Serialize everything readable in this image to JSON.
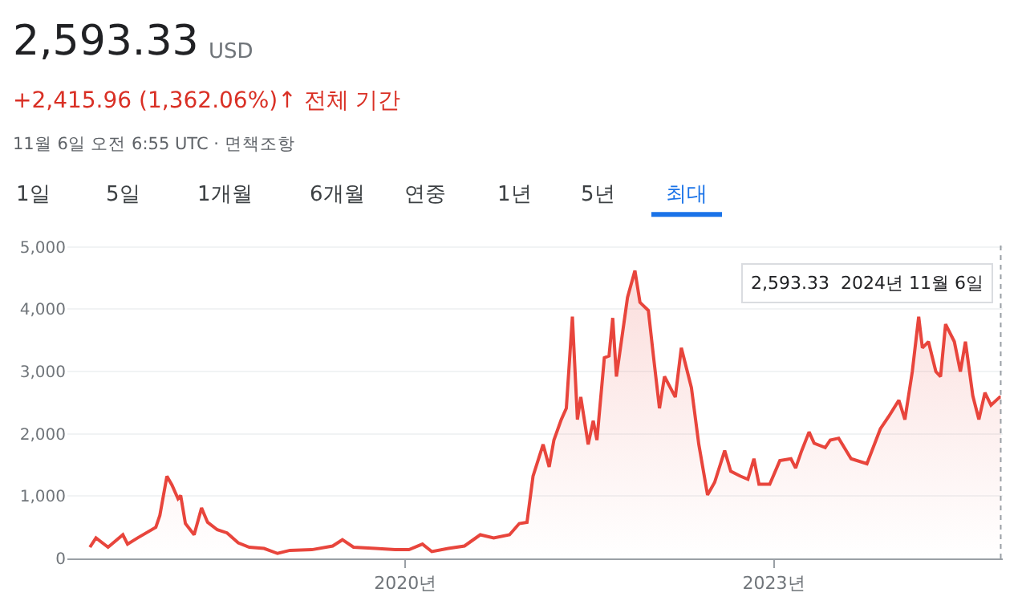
{
  "chart_data": {
    "type": "area",
    "annotations": [
      "2,593.33",
      "USD",
      "+2,415.96 (1,362.06%)↑ 전체 기간",
      "11월 6일 오전 6:55 UTC · 면책조항",
      "1일",
      "5일",
      "1개월",
      "6개월",
      "연중",
      "1년",
      "5년",
      "최대",
      "2,593.33  2024년 11월 6일"
    ],
    "x": [
      "2017-06-07",
      "2017-06-25",
      "2017-07-31",
      "2017-09-13",
      "2017-09-27",
      "2017-10-27",
      "2017-12-20",
      "2018-01-01",
      "2018-01-22",
      "2018-02-06",
      "2018-02-24",
      "2018-03-04",
      "2018-03-18",
      "2018-04-13",
      "2018-05-05",
      "2018-05-23",
      "2018-06-21",
      "2018-07-20",
      "2018-08-22",
      "2018-09-24",
      "2018-11-07",
      "2018-12-17",
      "2019-01-23",
      "2019-03-29",
      "2019-05-30",
      "2019-06-28",
      "2019-07-31",
      "2019-10-04",
      "2019-12-02",
      "2020-01-12",
      "2020-02-21",
      "2020-03-20",
      "2020-05-08",
      "2020-06-25",
      "2020-08-11",
      "2020-09-20",
      "2020-11-06",
      "2020-12-05",
      "2020-12-28",
      "2021-01-15",
      "2021-02-14",
      "2021-03-04",
      "2021-03-18",
      "2021-04-09",
      "2021-04-24",
      "2021-05-12",
      "2021-05-27",
      "2021-06-06",
      "2021-06-28",
      "2021-07-13",
      "2021-07-24",
      "2021-08-15",
      "2021-08-29",
      "2021-09-09",
      "2021-09-20",
      "2021-10-23",
      "2021-11-14",
      "2021-11-29",
      "2021-12-24",
      "2022-01-08",
      "2022-01-26",
      "2022-02-10",
      "2022-03-14",
      "2022-04-01",
      "2022-05-01",
      "2022-05-23",
      "2022-06-18",
      "2022-07-09",
      "2022-08-08",
      "2022-08-26",
      "2022-09-24",
      "2022-10-16",
      "2022-11-03",
      "2022-11-18",
      "2022-12-20",
      "2023-01-19",
      "2023-02-21",
      "2023-03-07",
      "2023-03-25",
      "2023-04-16",
      "2023-05-01",
      "2023-06-03",
      "2023-06-18",
      "2023-07-13",
      "2023-08-19",
      "2023-10-05",
      "2023-11-14",
      "2023-12-09",
      "2024-01-08",
      "2024-01-26",
      "2024-02-17",
      "2024-03-07",
      "2024-03-18",
      "2024-04-05",
      "2024-04-27",
      "2024-05-11",
      "2024-05-26",
      "2024-06-21",
      "2024-07-09",
      "2024-07-24",
      "2024-08-15",
      "2024-09-02",
      "2024-09-20",
      "2024-10-08",
      "2024-11-03",
      "2024-11-06"
    ],
    "series": [
      {
        "color": "#e8453c",
        "values": [
          180,
          330,
          180,
          380,
          230,
          330,
          500,
          690,
          1320,
          1180,
          960,
          1010,
          560,
          380,
          810,
          580,
          460,
          410,
          250,
          180,
          160,
          80,
          130,
          140,
          200,
          300,
          180,
          160,
          140,
          140,
          230,
          110,
          160,
          200,
          380,
          330,
          380,
          560,
          580,
          1320,
          1830,
          1470,
          1900,
          2230,
          2410,
          3880,
          2230,
          2590,
          1830,
          2210,
          1900,
          3220,
          3250,
          3860,
          2920,
          4190,
          4620,
          4110,
          3980,
          3250,
          2410,
          2920,
          2590,
          3380,
          2740,
          1830,
          1020,
          1220,
          1730,
          1400,
          1320,
          1270,
          1600,
          1190,
          1190,
          1570,
          1600,
          1450,
          1730,
          2030,
          1850,
          1780,
          1900,
          1930,
          1600,
          1520,
          2080,
          2280,
          2540,
          2230,
          3000,
          3880,
          3380,
          3480,
          3000,
          2920,
          3760,
          3480,
          3000,
          3480,
          2610,
          2230,
          2660,
          2460,
          2590,
          2590
        ]
      }
    ],
    "xlim": [
      "2017-04-01",
      "2024-11-12"
    ],
    "xticks": [
      {
        "value": "2020-01-01",
        "label": "2020년"
      },
      {
        "value": "2023-01-01",
        "label": "2023년"
      }
    ],
    "ylim": [
      0,
      5100
    ],
    "yticks": [
      {
        "value": 0,
        "label": "0"
      },
      {
        "value": 1000,
        "label": "1,000"
      },
      {
        "value": 2000,
        "label": "2,000"
      },
      {
        "value": 3000,
        "label": "3,000"
      },
      {
        "value": 4000,
        "label": "4,000"
      },
      {
        "value": 5000,
        "label": "5,000"
      }
    ],
    "ref_lines": [
      {
        "axis": "x",
        "value": "2024-11-06",
        "color": "#9aa0a6",
        "line_style": "dotted"
      }
    ],
    "grid": "y",
    "marker": "none",
    "line_style": "solid"
  }
}
